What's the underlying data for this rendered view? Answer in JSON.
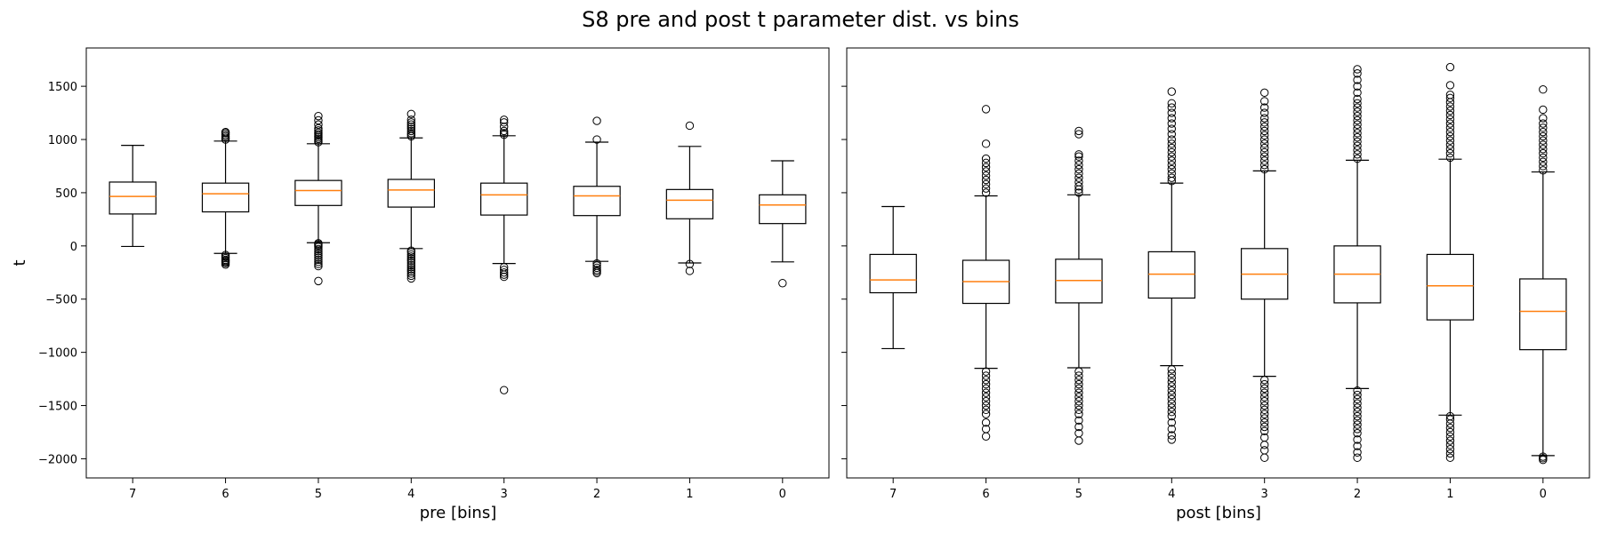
{
  "chart_data": {
    "title": "S8 pre and post t parameter dist. vs bins",
    "type": "boxplot",
    "ylabel": "t",
    "ylim": [
      -2180,
      1860
    ],
    "yticks": [
      -2000,
      -1500,
      -1000,
      -500,
      0,
      500,
      1000,
      1500
    ],
    "colors": {
      "median": "#ff7f0e",
      "box": "#000000"
    },
    "panels": [
      {
        "xlabel": "pre [bins]",
        "categories": [
          "7",
          "6",
          "5",
          "4",
          "3",
          "2",
          "1",
          "0"
        ],
        "boxes": [
          {
            "bin": "7",
            "whislo": -5,
            "q1": 300,
            "med": 465,
            "q3": 600,
            "whishi": 945,
            "fliers": []
          },
          {
            "bin": "6",
            "whislo": -70,
            "q1": 320,
            "med": 490,
            "q3": 590,
            "whishi": 985,
            "fliers": [
              -175,
              -160,
              -150,
              -140,
              -130,
              -115,
              -100,
              -85,
              1000,
              1015,
              1030,
              1045,
              1060,
              1070
            ]
          },
          {
            "bin": "5",
            "whislo": 30,
            "q1": 380,
            "med": 520,
            "q3": 615,
            "whishi": 960,
            "fliers": [
              -330,
              -190,
              -170,
              -150,
              -130,
              -110,
              -90,
              -70,
              -50,
              -30,
              -10,
              5,
              15,
              25,
              975,
              990,
              1005,
              1020,
              1035,
              1050,
              1065,
              1085,
              1105,
              1140,
              1180,
              1220
            ]
          },
          {
            "bin": "4",
            "whislo": -25,
            "q1": 365,
            "med": 525,
            "q3": 625,
            "whishi": 1015,
            "fliers": [
              -305,
              -280,
              -260,
              -240,
              -220,
              -200,
              -180,
              -160,
              -140,
              -120,
              -100,
              -80,
              -60,
              -45,
              1030,
              1045,
              1060,
              1080,
              1100,
              1120,
              1140,
              1160,
              1185,
              1240
            ]
          },
          {
            "bin": "3",
            "whislo": -165,
            "q1": 290,
            "med": 480,
            "q3": 590,
            "whishi": 1035,
            "fliers": [
              -1355,
              -290,
              -270,
              -250,
              -225,
              -200,
              1045,
              1060,
              1080,
              1120,
              1160,
              1185
            ]
          },
          {
            "bin": "2",
            "whislo": -145,
            "q1": 285,
            "med": 470,
            "q3": 560,
            "whishi": 975,
            "fliers": [
              -255,
              -240,
              -225,
              -205,
              -185,
              -165,
              1000,
              1175
            ]
          },
          {
            "bin": "1",
            "whislo": -160,
            "q1": 255,
            "med": 430,
            "q3": 530,
            "whishi": 935,
            "fliers": [
              -235,
              -170,
              1130
            ]
          },
          {
            "bin": "0",
            "whislo": -150,
            "q1": 210,
            "med": 385,
            "q3": 480,
            "whishi": 800,
            "fliers": [
              -350
            ]
          }
        ]
      },
      {
        "xlabel": "post [bins]",
        "categories": [
          "7",
          "6",
          "5",
          "4",
          "3",
          "2",
          "1",
          "0"
        ],
        "boxes": [
          {
            "bin": "7",
            "whislo": -965,
            "q1": -440,
            "med": -320,
            "q3": -80,
            "whishi": 370,
            "fliers": []
          },
          {
            "bin": "6",
            "whislo": -1150,
            "q1": -540,
            "med": -335,
            "q3": -135,
            "whishi": 470,
            "fliers": [
              -1790,
              -1720,
              -1660,
              -1580,
              -1540,
              -1500,
              -1460,
              -1420,
              -1380,
              -1340,
              -1300,
              -1260,
              -1220,
              -1180,
              500,
              540,
              580,
              620,
              660,
              700,
              740,
              780,
              820,
              960,
              1285
            ]
          },
          {
            "bin": "5",
            "whislo": -1145,
            "q1": -535,
            "med": -325,
            "q3": -125,
            "whishi": 480,
            "fliers": [
              -1830,
              -1760,
              -1700,
              -1640,
              -1580,
              -1540,
              -1500,
              -1460,
              -1420,
              -1380,
              -1340,
              -1300,
              -1260,
              -1220,
              -1180,
              500,
              530,
              560,
              600,
              640,
              680,
              720,
              760,
              800,
              840,
              860,
              1050,
              1080
            ]
          },
          {
            "bin": "4",
            "whislo": -1125,
            "q1": -490,
            "med": -265,
            "q3": -55,
            "whishi": 590,
            "fliers": [
              -1820,
              -1780,
              -1720,
              -1660,
              -1600,
              -1560,
              -1520,
              -1480,
              -1440,
              -1400,
              -1360,
              -1320,
              -1280,
              -1240,
              -1200,
              -1160,
              610,
              640,
              680,
              720,
              760,
              800,
              840,
              880,
              920,
              960,
              1000,
              1050,
              1100,
              1150,
              1200,
              1250,
              1300,
              1340,
              1450
            ]
          },
          {
            "bin": "3",
            "whislo": -1225,
            "q1": -500,
            "med": -265,
            "q3": -25,
            "whishi": 705,
            "fliers": [
              -1990,
              -1920,
              -1870,
              -1800,
              -1740,
              -1700,
              -1660,
              -1620,
              -1580,
              -1540,
              -1500,
              -1460,
              -1420,
              -1380,
              -1340,
              -1300,
              -1260,
              720,
              760,
              800,
              840,
              880,
              920,
              960,
              1000,
              1040,
              1080,
              1120,
              1160,
              1200,
              1250,
              1300,
              1360,
              1440
            ]
          },
          {
            "bin": "2",
            "whislo": -1340,
            "q1": -535,
            "med": -265,
            "q3": 0,
            "whishi": 805,
            "fliers": [
              -1990,
              -1940,
              -1880,
              -1820,
              -1760,
              -1720,
              -1680,
              -1640,
              -1600,
              -1560,
              -1520,
              -1480,
              -1440,
              -1400,
              -1360,
              820,
              860,
              900,
              940,
              980,
              1020,
              1060,
              1100,
              1140,
              1180,
              1220,
              1260,
              1300,
              1340,
              1380,
              1440,
              1500,
              1560,
              1620,
              1660
            ]
          },
          {
            "bin": "1",
            "whislo": -1590,
            "q1": -695,
            "med": -375,
            "q3": -80,
            "whishi": 815,
            "fliers": [
              -1990,
              -1950,
              -1910,
              -1870,
              -1830,
              -1790,
              -1750,
              -1710,
              -1670,
              -1630,
              -1600,
              830,
              870,
              910,
              950,
              990,
              1030,
              1070,
              1110,
              1150,
              1190,
              1230,
              1270,
              1310,
              1350,
              1390,
              1420,
              1510,
              1680
            ]
          },
          {
            "bin": "0",
            "whislo": -1970,
            "q1": -975,
            "med": -615,
            "q3": -310,
            "whishi": 695,
            "fliers": [
              -2010,
              -1995,
              -1980,
              710,
              750,
              790,
              830,
              870,
              910,
              950,
              990,
              1030,
              1070,
              1110,
              1150,
              1200,
              1280,
              1470
            ]
          }
        ]
      }
    ]
  }
}
